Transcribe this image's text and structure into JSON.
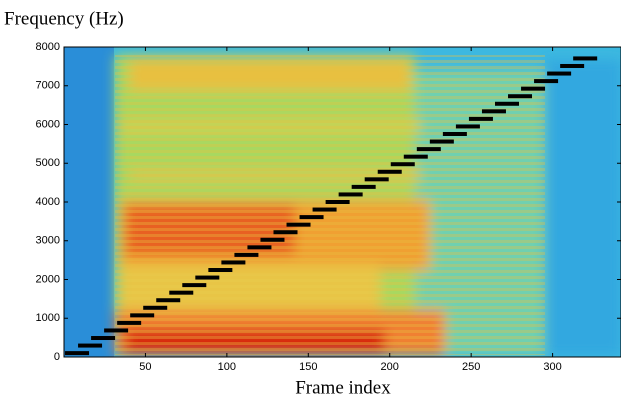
{
  "chart_data": {
    "type": "spectrogram",
    "ylabel": "Frequency (Hz)",
    "xlabel": "Frame index",
    "xlim": [
      0,
      342
    ],
    "xticks": [
      50,
      100,
      150,
      200,
      250,
      300
    ],
    "ylim": [
      0,
      8000
    ],
    "yticks": [
      0,
      1000,
      2000,
      3000,
      4000,
      5000,
      6000,
      7000,
      8000
    ],
    "x": [
      8,
      16,
      24,
      32,
      40,
      48,
      56,
      64,
      72,
      80,
      88,
      96,
      104,
      112,
      120,
      128,
      136,
      144,
      152,
      160,
      168,
      176,
      184,
      192,
      200,
      208,
      216,
      224,
      232,
      240,
      248,
      256,
      264,
      272,
      280,
      288,
      296,
      304,
      312,
      320
    ],
    "series": [
      {
        "color": "#000000",
        "values": [
          100,
          295,
          490,
          685,
          880,
          1075,
          1270,
          1465,
          1660,
          1855,
          2050,
          2245,
          2440,
          2635,
          2830,
          3025,
          3220,
          3415,
          3610,
          3805,
          4000,
          4195,
          4390,
          4585,
          4780,
          4975,
          5170,
          5365,
          5560,
          5755,
          5950,
          6145,
          6340,
          6535,
          6730,
          6925,
          7120,
          7315,
          7510,
          7705
        ]
      }
    ]
  }
}
